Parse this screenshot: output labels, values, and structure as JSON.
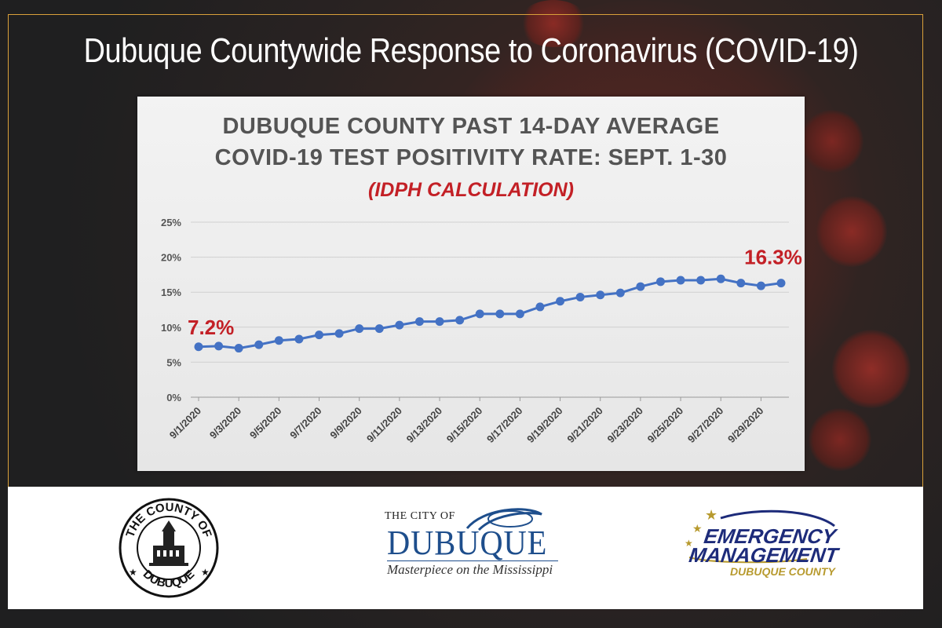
{
  "header": {
    "title": "Dubuque Countywide Response to Coronavirus (COVID-19)"
  },
  "chart_data": {
    "type": "line",
    "title": "DUBUQUE COUNTY PAST 14-DAY AVERAGE COVID-19 TEST POSITIVITY RATE: SEPT. 1-30",
    "title_line1": "DUBUQUE COUNTY PAST 14-DAY AVERAGE",
    "title_line2": "COVID-19 TEST POSITIVITY RATE: SEPT. 1-30",
    "subtitle": "(IDPH CALCULATION)",
    "xlabel": "",
    "ylabel": "",
    "ylim": [
      0,
      25
    ],
    "yticks": [
      "0%",
      "5%",
      "10%",
      "15%",
      "20%",
      "25%"
    ],
    "grid": true,
    "series_color": "#4472c4",
    "x": [
      "9/1/2020",
      "9/2/2020",
      "9/3/2020",
      "9/4/2020",
      "9/5/2020",
      "9/6/2020",
      "9/7/2020",
      "9/8/2020",
      "9/9/2020",
      "9/10/2020",
      "9/11/2020",
      "9/12/2020",
      "9/13/2020",
      "9/14/2020",
      "9/15/2020",
      "9/16/2020",
      "9/17/2020",
      "9/18/2020",
      "9/19/2020",
      "9/20/2020",
      "9/21/2020",
      "9/22/2020",
      "9/23/2020",
      "9/24/2020",
      "9/25/2020",
      "9/26/2020",
      "9/27/2020",
      "9/28/2020",
      "9/29/2020",
      "9/30/2020"
    ],
    "xtick_labels": [
      "9/1/2020",
      "9/3/2020",
      "9/5/2020",
      "9/7/2020",
      "9/9/2020",
      "9/11/2020",
      "9/13/2020",
      "9/15/2020",
      "9/17/2020",
      "9/19/2020",
      "9/21/2020",
      "9/23/2020",
      "9/25/2020",
      "9/27/2020",
      "9/29/2020"
    ],
    "values": [
      7.2,
      7.3,
      7.0,
      7.5,
      8.1,
      8.3,
      8.9,
      9.1,
      9.8,
      9.8,
      10.3,
      10.8,
      10.8,
      11.0,
      11.9,
      11.9,
      11.9,
      12.9,
      13.7,
      14.3,
      14.6,
      14.9,
      15.8,
      16.5,
      16.7,
      16.7,
      16.9,
      16.3,
      15.9,
      16.3
    ],
    "annotations": [
      {
        "text": "7.2%",
        "index": 0,
        "color": "#c32026"
      },
      {
        "text": "16.3%",
        "index": 29,
        "color": "#c32026"
      }
    ]
  },
  "logos": {
    "county_seal": {
      "top_text": "THE COUNTY OF",
      "bottom_text": "DUBUQUE"
    },
    "city": {
      "small": "THE CITY OF",
      "name": "DUBUQUE",
      "tagline": "Masterpiece on the Mississippi",
      "color": "#1e4e8c"
    },
    "emergency": {
      "line1": "EMERGENCY",
      "line2": "MANAGEMENT",
      "line3": "DUBUQUE COUNTY"
    }
  }
}
